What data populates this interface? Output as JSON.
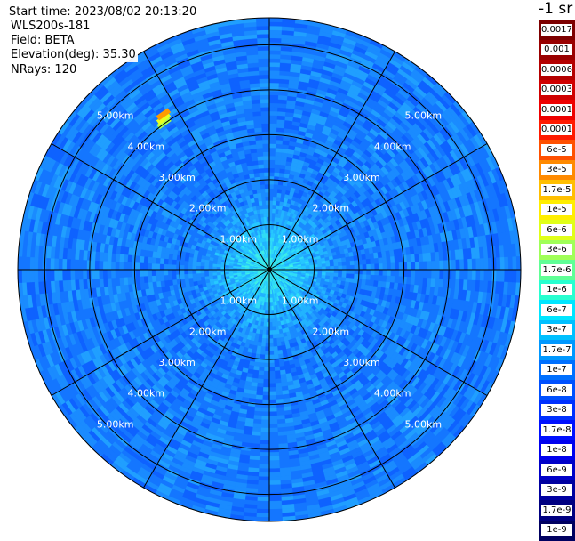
{
  "header": {
    "start_time": "Start time: 2023/08/02 20:13:20",
    "instrument": "WLS200s-181",
    "field": "Field: BETA",
    "elevation": "Elevation(deg): 35.30",
    "nrays": "NRays: 120"
  },
  "units_label": "-1 sr",
  "chart_data": {
    "type": "heatmap",
    "projection": "polar (PPI scan)",
    "field": "BETA",
    "elevation_deg": 35.3,
    "nrays": 120,
    "radial_range_km": [
      0,
      5.6
    ],
    "range_rings_km": [
      1.0,
      2.0,
      3.0,
      4.0,
      5.0
    ],
    "ring_labels": [
      "1.00km",
      "2.00km",
      "3.00km",
      "4.00km",
      "5.00km"
    ],
    "radial_spokes_deg": [
      0,
      30,
      60,
      90,
      120,
      150,
      180,
      210,
      240,
      270,
      300,
      330
    ],
    "colorbar": {
      "scale": "log",
      "ticks": [
        "0.0017",
        "0.001",
        "0.0006",
        "0.0003",
        "0.00017",
        "0.0001",
        "6e-5",
        "3e-5",
        "1.7e-5",
        "1e-5",
        "6e-6",
        "3e-6",
        "1.7e-6",
        "1e-6",
        "6e-7",
        "3e-7",
        "1.7e-7",
        "1e-7",
        "6e-8",
        "3e-8",
        "1.7e-8",
        "1e-8",
        "6e-9",
        "3e-9",
        "1.7e-9",
        "1e-9"
      ],
      "colors": [
        "#7d0000",
        "#990000",
        "#b40000",
        "#d00000",
        "#ee0000",
        "#ff1a00",
        "#ff5000",
        "#ff8a00",
        "#ffbf00",
        "#ffee00",
        "#e0ff18",
        "#a0ff58",
        "#60ff96",
        "#28ffd0",
        "#00e6ff",
        "#00c0ff",
        "#0098ff",
        "#0070ff",
        "#0050ff",
        "#0030ff",
        "#0010ff",
        "#0000ee",
        "#0000c8",
        "#0000a0",
        "#000080",
        "#000060"
      ]
    },
    "typical_value_center": "1.7e-7",
    "typical_value_outer": "1e-7",
    "hotspot": {
      "range_km": 4.1,
      "azimuth_deg": 325,
      "value": "6e-6"
    }
  }
}
